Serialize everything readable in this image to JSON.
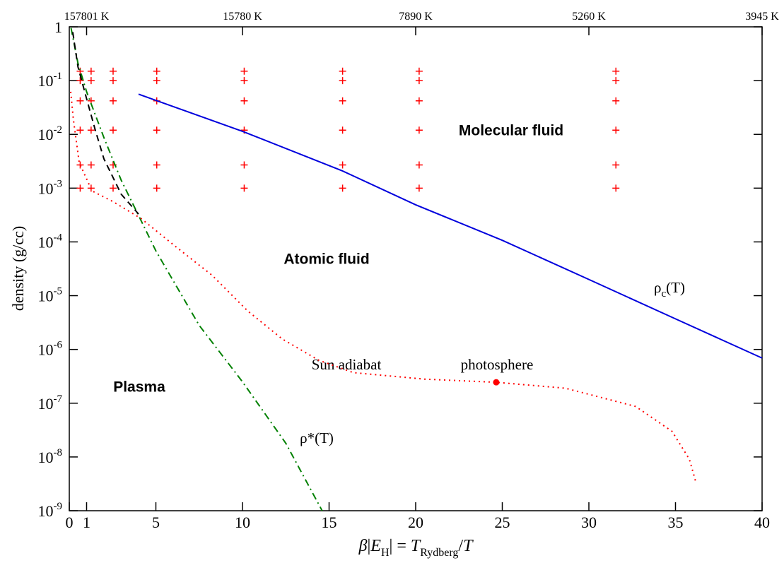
{
  "chart_data": {
    "type": "line",
    "xlabel": [
      "β",
      "|",
      "E",
      "H",
      "|",
      " = ",
      "T",
      "Rydberg",
      "/",
      "T"
    ],
    "ylabel": "density (g/cc)",
    "xlim": [
      0,
      40
    ],
    "ylim": [
      1e-09,
      1
    ],
    "log_y": true,
    "xticks": [
      0,
      1,
      5,
      10,
      15,
      20,
      25,
      30,
      35,
      40
    ],
    "yticks": [
      1,
      {
        "value": 0.1,
        "label": "10",
        "exponent": "-1"
      },
      {
        "value": 0.01,
        "label": "10",
        "exponent": "-2"
      },
      {
        "value": 0.001,
        "label": "10",
        "exponent": "-3"
      },
      {
        "value": 0.0001,
        "label": "10",
        "exponent": "-4"
      },
      {
        "value": 1e-05,
        "label": "10",
        "exponent": "-5"
      },
      {
        "value": 1e-06,
        "label": "10",
        "exponent": "-6"
      },
      {
        "value": 1e-07,
        "label": "10",
        "exponent": "-7"
      },
      {
        "value": 1e-08,
        "label": "10",
        "exponent": "-8"
      },
      {
        "value": 1e-09,
        "label": "10",
        "exponent": "-9"
      }
    ],
    "x2ticks": [
      {
        "value": 1,
        "label": "157801 K"
      },
      {
        "value": 10,
        "label": "15780 K"
      },
      {
        "value": 20,
        "label": "7890 K"
      },
      {
        "value": 30,
        "label": "5260 K"
      },
      {
        "value": 40,
        "label": "3945 K"
      }
    ],
    "annotations": [
      "Molecular fluid",
      "Atomic fluid",
      "Plasma",
      "Sun adiabat",
      "photosphere",
      "ρ*(T)"
    ],
    "rho_c_label": {
      "text": "ρ",
      "subscript": "c",
      "suffix": "(T)"
    },
    "series": [
      {
        "type": "scatter",
        "marker": "plus",
        "color": "#ff0000",
        "x": [
          0.63,
          0.63,
          0.63,
          0.63,
          0.63,
          0.63,
          1.26,
          1.26,
          1.26,
          1.26,
          1.26,
          1.26,
          2.53,
          2.53,
          2.53,
          2.53,
          2.53,
          2.53,
          5.05,
          5.05,
          5.05,
          5.05,
          5.05,
          5.05,
          10.1,
          10.1,
          10.1,
          10.1,
          10.1,
          10.1,
          15.78,
          15.78,
          15.78,
          15.78,
          15.78,
          15.78,
          20.2,
          20.2,
          20.2,
          20.2,
          20.2,
          20.2,
          31.56,
          31.56,
          31.56,
          31.56,
          31.56,
          31.56
        ],
        "values": [
          0.15,
          0.1,
          0.042,
          0.012,
          0.0027,
          0.001,
          0.15,
          0.1,
          0.042,
          0.012,
          0.0027,
          0.001,
          0.15,
          0.1,
          0.042,
          0.012,
          0.0027,
          0.001,
          0.15,
          0.1,
          0.042,
          0.012,
          0.0027,
          0.001,
          0.15,
          0.1,
          0.042,
          0.012,
          0.0027,
          0.001,
          0.15,
          0.1,
          0.042,
          0.012,
          0.0027,
          0.001,
          0.15,
          0.1,
          0.042,
          0.012,
          0.0027,
          0.001,
          0.15,
          0.1,
          0.042,
          0.012,
          0.0027,
          0.001
        ]
      },
      {
        "type": "line",
        "style": "solid",
        "color": "#0000dd",
        "x": [
          4,
          10,
          15.76,
          20,
          25,
          30,
          35,
          40
        ],
        "values": [
          0.056,
          0.0114,
          0.0021,
          0.00049,
          0.000107,
          2e-05,
          3.7e-06,
          6.9e-07
        ]
      },
      {
        "type": "line",
        "style": "dashdot",
        "color": "#008000",
        "x": [
          0.1,
          0.5,
          1,
          2,
          3,
          4,
          5,
          7.5,
          10,
          12.5,
          14.6
        ],
        "values": [
          0.95,
          0.21,
          0.062,
          0.0087,
          0.0014,
          0.00031,
          6.8e-05,
          2.8e-06,
          2.5e-07,
          1.8e-08,
          1e-09
        ]
      },
      {
        "type": "line",
        "style": "dashed",
        "color": "#000000",
        "x": [
          0.2,
          0.5,
          1,
          1.5,
          2,
          3,
          4
        ],
        "values": [
          0.8,
          0.18,
          0.046,
          0.012,
          0.0035,
          0.00077,
          0.00033
        ]
      },
      {
        "type": "line",
        "style": "dotted",
        "color": "#ff0000",
        "x": [
          0.08,
          0.24,
          0.57,
          1.31,
          2.53,
          4.16,
          6.2,
          8.24,
          10.3,
          12.3,
          14.4,
          16.4,
          20.5,
          24.65,
          28.65,
          32.7,
          34.8,
          35.8,
          36.2
        ],
        "values": [
          0.062,
          0.0185,
          0.003,
          0.00089,
          0.00056,
          0.00027,
          7.9e-05,
          2.4e-05,
          5.2e-06,
          1.56e-06,
          6.3e-07,
          3.7e-07,
          2.8e-07,
          2.45e-07,
          1.9e-07,
          8.7e-08,
          3e-08,
          9.1e-09,
          3.2e-09
        ]
      },
      {
        "type": "scatter",
        "marker": "dot",
        "color": "#ff0000",
        "x": [
          24.65
        ],
        "values": [
          2.45e-07
        ]
      }
    ]
  }
}
